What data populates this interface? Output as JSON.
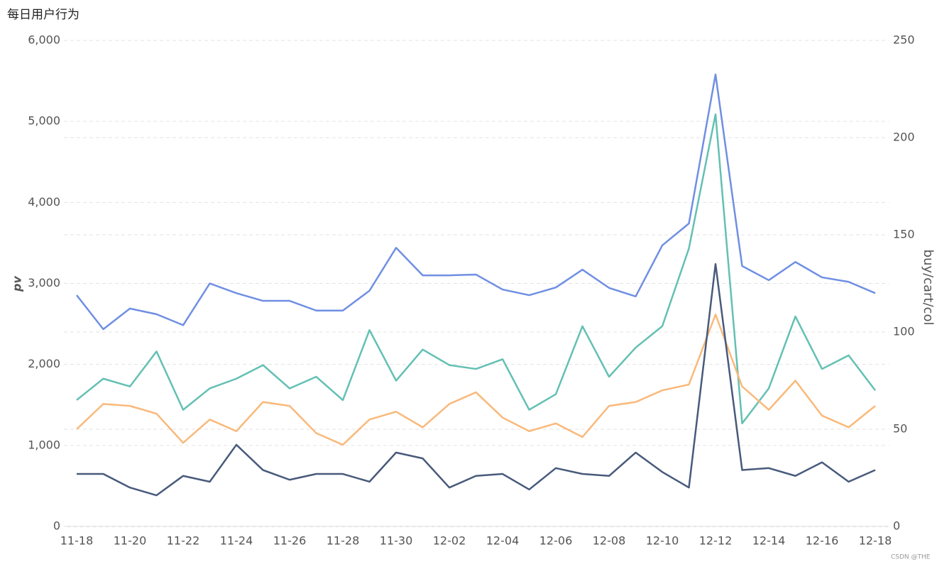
{
  "chart_data": {
    "type": "line",
    "title": "每日用户行为",
    "y_label": "pv",
    "y2_label": "buy/cart/col",
    "watermark": "CSDN @THE",
    "categories": [
      "11-18",
      null,
      "11-20",
      null,
      "11-22",
      null,
      "11-24",
      null,
      "11-26",
      null,
      "11-28",
      null,
      "11-30",
      null,
      "12-02",
      null,
      "12-04",
      null,
      "12-06",
      null,
      "12-08",
      null,
      "12-10",
      null,
      "12-12",
      null,
      "12-14",
      null,
      "12-16",
      null,
      "12-18"
    ],
    "ylim": [
      0,
      6000
    ],
    "yticks": [
      0,
      {
        "value": 1000,
        "label": "1,000"
      },
      {
        "value": 2000,
        "label": "2,000"
      },
      {
        "value": 3000,
        "label": "3,000"
      },
      {
        "value": 4000,
        "label": "4,000"
      },
      {
        "value": 5000,
        "label": "5,000"
      },
      {
        "value": 6000,
        "label": "6,000"
      }
    ],
    "y2lim": [
      0,
      250
    ],
    "y2ticks": [
      0,
      50,
      100,
      150,
      200,
      250
    ],
    "grid": true,
    "series": [
      {
        "color": "#6f8fe3",
        "values": [
          2855,
          2435,
          2690,
          2620,
          2485,
          3000,
          2880,
          2785,
          2785,
          2665,
          2665,
          2910,
          3440,
          3100,
          3100,
          3110,
          2925,
          2855,
          2950,
          3170,
          2945,
          2840,
          3470,
          3740,
          5580,
          3215,
          3040,
          3265,
          3075,
          3020,
          2880
        ]
      },
      {
        "color": "#63c0b3",
        "axis": "y2",
        "values": [
          65,
          76,
          72,
          90,
          60,
          71,
          76,
          83,
          71,
          77,
          65,
          101,
          75,
          91,
          83,
          81,
          86,
          60,
          68,
          103,
          77,
          92,
          103,
          143,
          212,
          53,
          71,
          108,
          81,
          88,
          70
        ]
      },
      {
        "color": "#f9b97b",
        "axis": "y2",
        "values": [
          50,
          63,
          62,
          58,
          43,
          55,
          49,
          64,
          62,
          48,
          42,
          55,
          59,
          51,
          63,
          69,
          56,
          49,
          53,
          46,
          62,
          64,
          70,
          73,
          109,
          72,
          60,
          75,
          57,
          51,
          62
        ]
      },
      {
        "color": "#485a7b",
        "axis": "y2",
        "values": [
          27,
          27,
          20,
          16,
          26,
          23,
          42,
          29,
          24,
          27,
          27,
          23,
          38,
          35,
          20,
          26,
          27,
          19,
          30,
          27,
          26,
          38,
          28,
          20,
          135,
          29,
          30,
          26,
          33,
          23,
          29
        ]
      }
    ]
  }
}
